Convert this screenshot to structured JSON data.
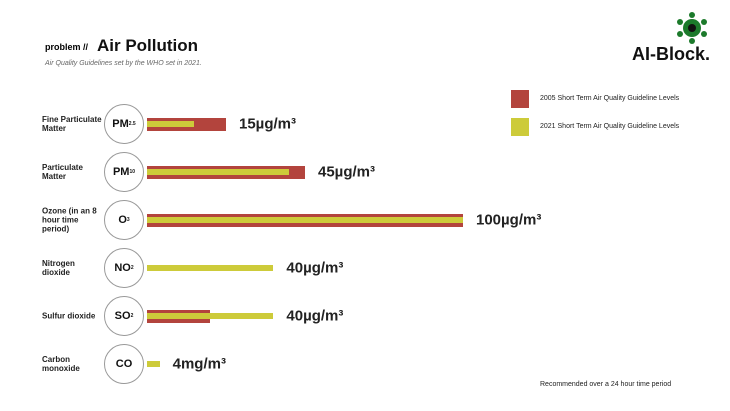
{
  "header": {
    "kicker": "problem //",
    "title": "Air Pollution",
    "subtitle": "Air Quality Guidelines set by the WHO set in 2021.",
    "logo": "AI-Block."
  },
  "chart_data": {
    "type": "bar",
    "categories": [
      "Fine Particulate Matter",
      "Particulate Matter",
      "Ozone (in an 8 hour time period)",
      "Nitrogen dioxide",
      "Sulfur dioxide",
      "Carbon monoxide"
    ],
    "symbols": [
      {
        "main": "PM",
        "sub": "2.5"
      },
      {
        "main": "PM",
        "sub": "10"
      },
      {
        "main": "O",
        "sub": "3"
      },
      {
        "main": "NO",
        "sub": "2"
      },
      {
        "main": "SO",
        "sub": "2"
      },
      {
        "main": "CO"
      }
    ],
    "series": [
      {
        "name": "2005 Short Term Air Quality Guideline Levels",
        "color": "#b3443d",
        "values": [
          25,
          50,
          100,
          null,
          20,
          null
        ]
      },
      {
        "name": "2021 Short Term Air Quality Guideline Levels",
        "color": "#cdcb3a",
        "values": [
          15,
          45,
          100,
          40,
          40,
          4
        ],
        "value_labels": [
          "15µg/m³",
          "45µg/m³",
          "100µg/m³",
          "40µg/m³",
          "40µg/m³",
          "4mg/m³"
        ]
      }
    ],
    "note": "Recommended over a 24 hour time period"
  }
}
